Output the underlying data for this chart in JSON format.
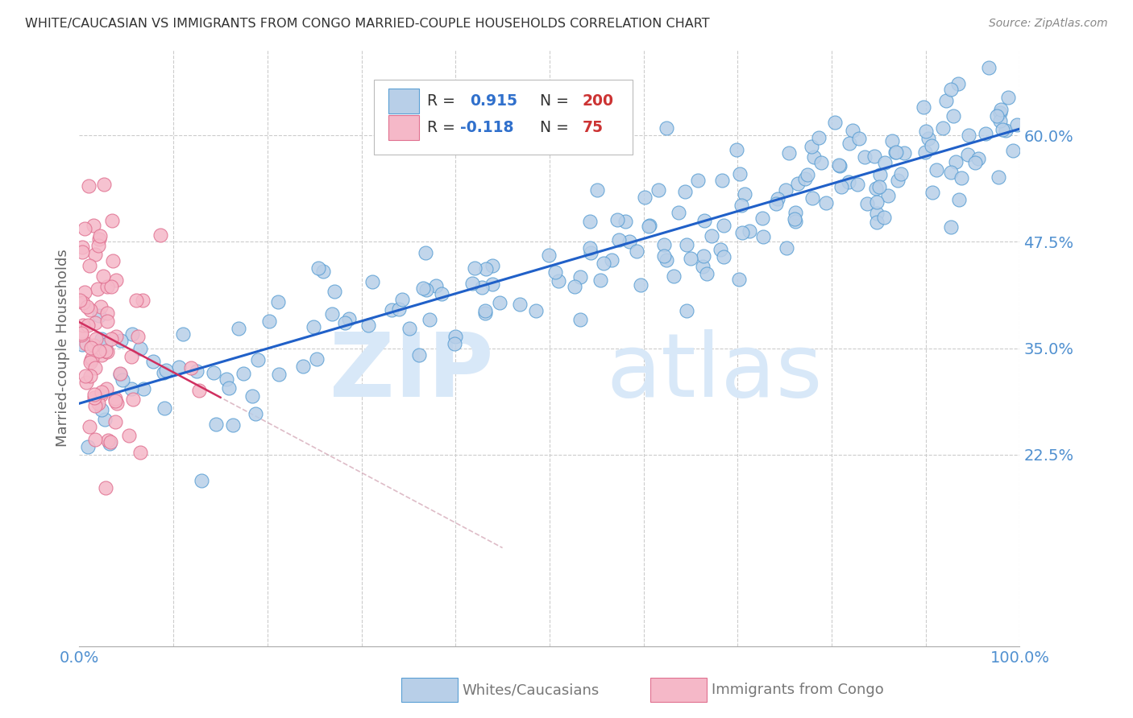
{
  "title": "WHITE/CAUCASIAN VS IMMIGRANTS FROM CONGO MARRIED-COUPLE HOUSEHOLDS CORRELATION CHART",
  "source": "Source: ZipAtlas.com",
  "ylabel": "Married-couple Households",
  "watermark_zip": "ZIP",
  "watermark_atlas": "atlas",
  "blue_R": 0.915,
  "blue_N": 200,
  "pink_R": -0.118,
  "pink_N": 75,
  "blue_scatter_color": "#b8cfe8",
  "blue_edge_color": "#5a9fd4",
  "pink_scatter_color": "#f5b8c8",
  "pink_edge_color": "#e07090",
  "blue_line_color": "#2060c8",
  "pink_line_color": "#d03060",
  "pink_dash_color": "#d0a0b0",
  "bg_color": "#ffffff",
  "grid_color": "#cccccc",
  "title_color": "#333333",
  "axis_tick_color": "#5090d0",
  "ylabel_color": "#666666",
  "watermark_color": "#d8e8f8",
  "source_color": "#888888",
  "legend_text_color": "#333333",
  "legend_val_color": "#3070cc",
  "legend_n_color": "#cc3333",
  "bottom_legend_text_color": "#777777",
  "xlim": [
    0.0,
    1.0
  ],
  "ylim": [
    0.0,
    0.7
  ],
  "ytick_vals": [
    0.225,
    0.35,
    0.475,
    0.6
  ],
  "ytick_labels": [
    "22.5%",
    "35.0%",
    "47.5%",
    "60.0%"
  ],
  "xtick_vals": [
    0.0,
    0.1,
    0.2,
    0.3,
    0.4,
    0.5,
    0.6,
    0.7,
    0.8,
    0.9,
    1.0
  ],
  "xtick_labels": [
    "0.0%",
    "",
    "",
    "",
    "",
    "",
    "",
    "",
    "",
    "",
    "100.0%"
  ],
  "blue_seed": 42,
  "pink_seed": 123,
  "figsize": [
    14.06,
    8.92
  ],
  "dpi": 100
}
